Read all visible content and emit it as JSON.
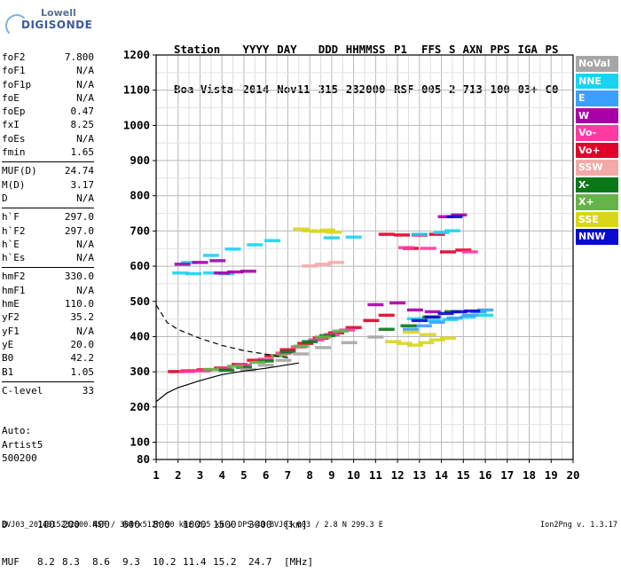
{
  "logo": {
    "line1": "Lowell",
    "line2": "DIGISONDE"
  },
  "header": {
    "row1": [
      "Station",
      "YYYY",
      "DAY",
      "DDD",
      "HHMMSS",
      "P1",
      "FFS",
      "S",
      "AXN",
      "PPS",
      "IGA",
      "PS"
    ],
    "row2": [
      "Boa Vista",
      "2014",
      "Nov11",
      "315",
      "232000",
      "RSF",
      "005",
      "2",
      "713",
      "100",
      "03+",
      "C0"
    ]
  },
  "params": {
    "group1": [
      {
        "name": "foF2",
        "value": "7.800"
      },
      {
        "name": "foF1",
        "value": "N/A"
      },
      {
        "name": "foF1p",
        "value": "N/A"
      },
      {
        "name": "foE",
        "value": "N/A"
      },
      {
        "name": "foEp",
        "value": "0.47"
      },
      {
        "name": "fxI",
        "value": "8.25"
      },
      {
        "name": "foEs",
        "value": "N/A"
      },
      {
        "name": "fmin",
        "value": "1.65"
      }
    ],
    "group2": [
      {
        "name": "MUF(D)",
        "value": "24.74"
      },
      {
        "name": "M(D)",
        "value": "3.17"
      },
      {
        "name": "D",
        "value": "N/A"
      }
    ],
    "group3": [
      {
        "name": "h`F",
        "value": "297.0"
      },
      {
        "name": "h`F2",
        "value": "297.0"
      },
      {
        "name": "h`E",
        "value": "N/A"
      },
      {
        "name": "h`Es",
        "value": "N/A"
      }
    ],
    "group4": [
      {
        "name": "hmF2",
        "value": "330.0"
      },
      {
        "name": "hmF1",
        "value": "N/A"
      },
      {
        "name": "hmE",
        "value": "110.0"
      },
      {
        "name": "yF2",
        "value": "35.2"
      },
      {
        "name": "yF1",
        "value": "N/A"
      },
      {
        "name": "yE",
        "value": "20.0"
      },
      {
        "name": "B0",
        "value": "42.2"
      },
      {
        "name": "B1",
        "value": "1.05"
      }
    ],
    "group5": [
      {
        "name": "C-level",
        "value": "33"
      }
    ]
  },
  "auto": {
    "line1": "Auto:",
    "line2": "Artist5",
    "line3": "500200"
  },
  "legend": [
    {
      "label": "NoVal",
      "color": "#a6a6a6"
    },
    {
      "label": "NNE",
      "color": "#19d3f2"
    },
    {
      "label": "E",
      "color": "#3aa0ff"
    },
    {
      "label": "W",
      "color": "#a800a8"
    },
    {
      "label": "Vo-",
      "color": "#ff3aa0"
    },
    {
      "label": "Vo+",
      "color": "#e0002a"
    },
    {
      "label": "SSW",
      "color": "#f5a8a8"
    },
    {
      "label": "X-",
      "color": "#087818"
    },
    {
      "label": "X+",
      "color": "#66b34a"
    },
    {
      "label": "SSE",
      "color": "#d9d61a"
    },
    {
      "label": "NNW",
      "color": "#0a0ad0"
    }
  ],
  "dmuf": {
    "d_label": "D",
    "d_values": [
      "100",
      "200",
      "400",
      "600",
      "800",
      "1000",
      "1500",
      "3000"
    ],
    "d_unit": "[km]",
    "muf_label": "MUF",
    "muf_values": [
      "8.2",
      "8.3",
      "8.6",
      "9.3",
      "10.2",
      "11.4",
      "15.2",
      "24.7"
    ],
    "muf_unit": "[MHz]"
  },
  "footer": {
    "left": "BVJ03_2014315232000.RSF / 384fx512h 50 kHz 2.5 km / DPS-4D BVJ03 003 / 2.8 N 299.3 E",
    "right": "Ion2Png v. 1.3.17"
  },
  "chart_data": {
    "type": "scatter",
    "title": "",
    "xlabel": "",
    "ylabel": "",
    "xlim": [
      1,
      20
    ],
    "ylim": [
      80,
      1200
    ],
    "x_ticks": [
      1,
      2,
      3,
      4,
      5,
      6,
      7,
      8,
      9,
      10,
      11,
      12,
      13,
      14,
      15,
      16,
      17,
      18,
      19,
      20
    ],
    "y_ticks": [
      80,
      100,
      200,
      300,
      400,
      500,
      600,
      700,
      800,
      900,
      1000,
      1100,
      1200
    ],
    "grid": true,
    "series": [
      {
        "name": "Vo+",
        "color": "#e0002a",
        "points": [
          [
            1.9,
            300
          ],
          [
            2.5,
            302
          ],
          [
            3.2,
            305
          ],
          [
            4,
            310
          ],
          [
            4.8,
            320
          ],
          [
            5.5,
            332
          ],
          [
            6.3,
            345
          ],
          [
            7,
            362
          ],
          [
            7.8,
            380
          ],
          [
            8.5,
            395
          ],
          [
            9.2,
            410
          ],
          [
            10,
            425
          ],
          [
            10.8,
            445
          ],
          [
            11.5,
            460
          ],
          [
            11.5,
            690
          ],
          [
            12.2,
            688
          ],
          [
            13,
            688
          ],
          [
            13.8,
            690
          ],
          [
            12.6,
            650
          ],
          [
            14.3,
            640
          ],
          [
            15,
            645
          ]
        ]
      },
      {
        "name": "Vo-",
        "color": "#ff3aa0",
        "points": [
          [
            2.4,
            300
          ],
          [
            3.1,
            302
          ],
          [
            4.1,
            308
          ],
          [
            5,
            318
          ],
          [
            6,
            335
          ],
          [
            6.8,
            352
          ],
          [
            7.5,
            370
          ],
          [
            8.3,
            390
          ],
          [
            9,
            405
          ],
          [
            9.7,
            418
          ],
          [
            12.4,
            652
          ],
          [
            13.4,
            650
          ],
          [
            15.3,
            640
          ]
        ]
      },
      {
        "name": "NNE",
        "color": "#19d3f2",
        "points": [
          [
            2.1,
            580
          ],
          [
            2.7,
            578
          ],
          [
            3.5,
            580
          ],
          [
            4.2,
            578
          ],
          [
            2.5,
            610
          ],
          [
            3.5,
            630
          ],
          [
            4.5,
            648
          ],
          [
            5.5,
            660
          ],
          [
            6.3,
            672
          ],
          [
            9,
            680
          ],
          [
            10,
            682
          ],
          [
            13,
            690
          ],
          [
            14,
            695
          ],
          [
            14.5,
            700
          ],
          [
            12.8,
            450
          ],
          [
            13.6,
            445
          ],
          [
            14.4,
            448
          ],
          [
            15.2,
            455
          ],
          [
            16,
            460
          ]
        ]
      },
      {
        "name": "E",
        "color": "#3aa0ff",
        "points": [
          [
            12.6,
            420
          ],
          [
            13.2,
            430
          ],
          [
            13.8,
            440
          ],
          [
            14.6,
            452
          ],
          [
            15.3,
            460
          ],
          [
            15.7,
            470
          ],
          [
            16,
            475
          ]
        ]
      },
      {
        "name": "W",
        "color": "#a800a8",
        "points": [
          [
            4,
            580
          ],
          [
            4.6,
            583
          ],
          [
            5.2,
            585
          ],
          [
            2.2,
            605
          ],
          [
            3,
            610
          ],
          [
            3.8,
            615
          ],
          [
            11,
            490
          ],
          [
            12,
            495
          ],
          [
            12.8,
            475
          ],
          [
            13.6,
            470
          ],
          [
            14.2,
            740
          ],
          [
            14.8,
            745
          ]
        ]
      },
      {
        "name": "SSW",
        "color": "#f5a8a8",
        "points": [
          [
            8,
            600
          ],
          [
            8.6,
            605
          ],
          [
            9.2,
            610
          ]
        ]
      },
      {
        "name": "X-",
        "color": "#087818",
        "points": [
          [
            4.2,
            304
          ],
          [
            5,
            312
          ],
          [
            6,
            330
          ],
          [
            7,
            356
          ],
          [
            8,
            385
          ],
          [
            8.8,
            402
          ],
          [
            11.5,
            420
          ],
          [
            12.5,
            430
          ],
          [
            13.5,
            455
          ],
          [
            14.5,
            470
          ]
        ]
      },
      {
        "name": "X+",
        "color": "#66b34a",
        "points": [
          [
            3.5,
            306
          ],
          [
            4.6,
            315
          ],
          [
            5.6,
            326
          ],
          [
            6.6,
            345
          ],
          [
            7.6,
            372
          ],
          [
            8.6,
            398
          ],
          [
            9.4,
            415
          ]
        ]
      },
      {
        "name": "SSE",
        "color": "#d9d61a",
        "points": [
          [
            7.6,
            705
          ],
          [
            8,
            700
          ],
          [
            8.4,
            698
          ],
          [
            8.8,
            702
          ],
          [
            9.1,
            696
          ],
          [
            11.8,
            385
          ],
          [
            12.3,
            380
          ],
          [
            12.8,
            375
          ],
          [
            13.3,
            382
          ],
          [
            13.8,
            390
          ],
          [
            14.3,
            395
          ],
          [
            12.6,
            412
          ],
          [
            13.4,
            405
          ]
        ]
      },
      {
        "name": "NNW",
        "color": "#0a0ad0",
        "points": [
          [
            13,
            445
          ],
          [
            13.6,
            455
          ],
          [
            14.2,
            465
          ],
          [
            14.8,
            470
          ],
          [
            15.4,
            472
          ],
          [
            14.6,
            740
          ]
        ]
      },
      {
        "name": "NoVal",
        "color": "#a6a6a6",
        "points": [
          [
            5.2,
            305
          ],
          [
            6,
            318
          ],
          [
            6.8,
            332
          ],
          [
            7.6,
            350
          ],
          [
            8.6,
            368
          ],
          [
            9.8,
            382
          ],
          [
            11,
            398
          ]
        ]
      }
    ],
    "trace_solid": {
      "x": [
        1,
        1.5,
        2,
        3,
        4,
        5,
        6,
        7,
        7.5
      ],
      "y": [
        215,
        240,
        255,
        275,
        292,
        302,
        310,
        320,
        325
      ]
    },
    "trace_dashed": {
      "x": [
        1,
        1.5,
        2,
        3,
        4,
        5,
        6,
        7
      ],
      "y": [
        490,
        440,
        420,
        395,
        375,
        360,
        350,
        340
      ]
    }
  }
}
